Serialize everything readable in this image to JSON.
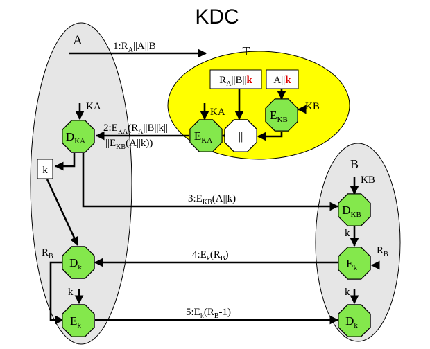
{
  "title": "KDC",
  "colors": {
    "party_fill": "#e6e6e6",
    "kdc_fill": "#ffff00",
    "node_fill": "#84e84c",
    "highlight": "#e00000",
    "stroke": "#000000"
  },
  "parties": {
    "a": "A",
    "b": "B",
    "t": "T"
  },
  "nodes": {
    "t_enc_ka": {
      "main": "E",
      "sub": "KA"
    },
    "t_enc_kb": {
      "main": "E",
      "sub": "KB"
    },
    "t_concat": {
      "main": "||"
    },
    "a_dec_ka": {
      "main": "D",
      "sub": "KA"
    },
    "a_dec_k": {
      "main": "D",
      "sub": "k"
    },
    "a_enc_k": {
      "main": "E",
      "sub": "k"
    },
    "b_dec_kb": {
      "main": "D",
      "sub": "KB"
    },
    "b_enc_k": {
      "main": "E",
      "sub": "k"
    },
    "b_dec_k": {
      "main": "D",
      "sub": "k"
    }
  },
  "boxes": {
    "t_input": {
      "p1": "R",
      "p1_sub": "A",
      "p2": "||B||",
      "key": "k"
    },
    "t_input_kb": {
      "p1": "A||",
      "key": "k"
    },
    "a_key": "k"
  },
  "keys": {
    "ka_at_a": "KA",
    "ka_at_t": "KA",
    "kb_at_t": "KB",
    "kb_at_b": "KB",
    "k_b1": "k",
    "k_b2": "k",
    "k_a": "k",
    "ra": {
      "main": "R",
      "sub": "B"
    },
    "rb": {
      "main": "R",
      "sub": "B"
    }
  },
  "messages": {
    "m1": {
      "a": "1:R",
      "a_sub": "A",
      "b": "||A||B"
    },
    "m2_line1": {
      "a": "2:E",
      "a_sub": "KA",
      "b": "(R",
      "b_sub": "A",
      "c": "||B||k||"
    },
    "m2_line2": {
      "a": "||E",
      "a_sub": "KB",
      "b": "(A||k))"
    },
    "m3": {
      "a": "3:E",
      "a_sub": "KB",
      "b": "(A||k)"
    },
    "m4": {
      "a": "4:E",
      "a_sub": "k",
      "b": "(R",
      "b_sub": "B",
      "c": ")"
    },
    "m5": {
      "a": "5:E",
      "a_sub": "k",
      "b": "(R",
      "b_sub": "B",
      "c": "-1)"
    }
  }
}
